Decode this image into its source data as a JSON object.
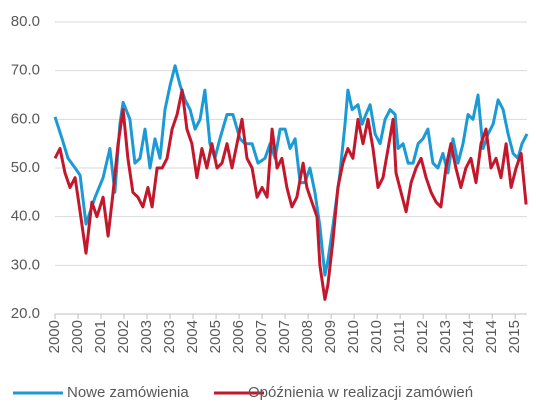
{
  "chart_data": {
    "type": "line",
    "xlim": [
      2000,
      2016
    ],
    "ylim": [
      20,
      80
    ],
    "yticks": [
      {
        "value": 20,
        "label": "20.0"
      },
      {
        "value": 30,
        "label": "30.0"
      },
      {
        "value": 40,
        "label": "40.0"
      },
      {
        "value": 50,
        "label": "50.0"
      },
      {
        "value": 60,
        "label": "60.0"
      },
      {
        "value": 70,
        "label": "70.0"
      },
      {
        "value": 80,
        "label": "80.0"
      }
    ],
    "xticks": [
      2000,
      {
        "value": 2000.78,
        "label": "2000"
      },
      {
        "value": 2001.56,
        "label": "2001"
      },
      {
        "value": 2002.34,
        "label": "2002"
      },
      {
        "value": 2003.12,
        "label": "2003"
      },
      {
        "value": 2003.9,
        "label": "2003"
      },
      {
        "value": 2004.68,
        "label": "2004"
      },
      {
        "value": 2005.46,
        "label": "2005"
      },
      {
        "value": 2006.24,
        "label": "2006"
      },
      {
        "value": 2007.02,
        "label": "2007"
      },
      {
        "value": 2007.8,
        "label": "2007"
      },
      {
        "value": 2008.58,
        "label": "2008"
      },
      {
        "value": 2009.36,
        "label": "2009"
      },
      {
        "value": 2010.14,
        "label": "2010"
      },
      {
        "value": 2010.92,
        "label": "2010"
      },
      {
        "value": 2011.7,
        "label": "2011"
      },
      {
        "value": 2012.48,
        "label": "2012"
      },
      {
        "value": 2013.26,
        "label": "2013"
      },
      {
        "value": 2014.04,
        "label": "2014"
      },
      {
        "value": 2014.82,
        "label": "2014"
      },
      {
        "value": 2015.6,
        "label": "2015"
      }
    ],
    "grid": true,
    "legend": "bottom",
    "series": [
      {
        "name": "Nowe zamówienia",
        "color": "#1b9ad6",
        "x": [
          2000,
          2000.24,
          2000.44,
          2000.68,
          2000.85,
          2001.05,
          2001.36,
          2001.63,
          2001.86,
          2002.03,
          2002.2,
          2002.31,
          2002.54,
          2002.71,
          2002.88,
          2003.05,
          2003.22,
          2003.39,
          2003.56,
          2003.73,
          2003.9,
          2004.07,
          2004.24,
          2004.41,
          2004.58,
          2004.75,
          2004.92,
          2005.08,
          2005.25,
          2005.42,
          2005.59,
          2005.83,
          2006.03,
          2006.27,
          2006.44,
          2006.68,
          2006.88,
          2007.12,
          2007.29,
          2007.46,
          2007.63,
          2007.8,
          2007.97,
          2008.14,
          2008.31,
          2008.47,
          2008.64,
          2008.81,
          2008.98,
          2009.15,
          2009.25,
          2009.42,
          2009.66,
          2009.83,
          2009.93,
          2010.07,
          2010.27,
          2010.41,
          2010.54,
          2010.68,
          2010.85,
          2011.02,
          2011.19,
          2011.36,
          2011.53,
          2011.63,
          2011.8,
          2011.97,
          2012.14,
          2012.31,
          2012.47,
          2012.64,
          2012.81,
          2012.98,
          2013.15,
          2013.32,
          2013.49,
          2013.66,
          2013.83,
          2014,
          2014.17,
          2014.34,
          2014.51,
          2014.68,
          2014.85,
          2015.02,
          2015.19,
          2015.36,
          2015.53,
          2015.69,
          2015.83,
          2016
        ],
        "values": [
          60.5,
          56,
          52,
          50,
          48.5,
          38.5,
          44,
          48,
          54,
          45,
          59,
          63.5,
          60,
          51,
          52,
          58,
          50,
          56,
          52,
          62,
          67,
          71,
          67,
          64,
          62,
          58,
          60,
          66,
          55,
          52,
          56,
          61,
          61,
          56,
          55,
          55,
          51,
          52,
          55,
          52,
          58,
          58,
          54,
          56,
          47,
          47,
          50,
          45,
          38,
          28,
          31,
          38,
          49,
          59,
          66,
          62,
          63,
          59,
          61,
          63,
          57,
          55,
          60,
          62,
          61,
          54,
          55,
          51,
          51,
          55,
          56,
          58,
          51,
          50,
          53,
          49,
          56,
          51,
          55,
          61,
          60,
          65,
          54,
          57,
          59,
          64,
          62,
          57,
          53,
          52,
          55,
          57
        ]
      },
      {
        "name": "Opóźnienia w realizacji zamówień",
        "color": "#c3172c",
        "x": [
          2000,
          2000.17,
          2000.34,
          2000.51,
          2000.68,
          2000.85,
          2001.05,
          2001.25,
          2001.42,
          2001.63,
          2001.8,
          2001.97,
          2002.14,
          2002.31,
          2002.47,
          2002.64,
          2002.81,
          2002.98,
          2003.15,
          2003.29,
          2003.46,
          2003.63,
          2003.8,
          2003.97,
          2004.14,
          2004.31,
          2004.47,
          2004.64,
          2004.81,
          2004.98,
          2005.15,
          2005.32,
          2005.49,
          2005.66,
          2005.83,
          2006,
          2006.17,
          2006.34,
          2006.51,
          2006.68,
          2006.85,
          2007.02,
          2007.19,
          2007.36,
          2007.53,
          2007.69,
          2007.86,
          2008.03,
          2008.2,
          2008.41,
          2008.54,
          2008.71,
          2008.88,
          2008.98,
          2009.15,
          2009.25,
          2009.42,
          2009.59,
          2009.76,
          2009.93,
          2010.1,
          2010.27,
          2010.44,
          2010.61,
          2010.78,
          2010.95,
          2011.12,
          2011.29,
          2011.46,
          2011.56,
          2011.73,
          2011.9,
          2012.07,
          2012.24,
          2012.41,
          2012.58,
          2012.75,
          2012.92,
          2013.08,
          2013.25,
          2013.42,
          2013.59,
          2013.76,
          2013.93,
          2014.1,
          2014.27,
          2014.44,
          2014.61,
          2014.78,
          2014.95,
          2015.12,
          2015.29,
          2015.46,
          2015.63,
          2015.8,
          2015.97
        ],
        "values": [
          52,
          54,
          49,
          46,
          48,
          41,
          32.5,
          43,
          40,
          44,
          36,
          45,
          55,
          62,
          52,
          45,
          44,
          42,
          46,
          42,
          50,
          50,
          52,
          58,
          61,
          66,
          58,
          55,
          48,
          54,
          50,
          55,
          50,
          51,
          55,
          50,
          55,
          60,
          52,
          50,
          44,
          46,
          44,
          58,
          50,
          52,
          46,
          42,
          44,
          51,
          46,
          43,
          40,
          30,
          23,
          26,
          35,
          46,
          51,
          54,
          52,
          60,
          55,
          60,
          54,
          46,
          48,
          54,
          60,
          49,
          45,
          41,
          47,
          50,
          52,
          48,
          45,
          43,
          42,
          50,
          55,
          50,
          46,
          50,
          52,
          47,
          55,
          58,
          50,
          52,
          48,
          55,
          46,
          50,
          53,
          42.5
        ]
      }
    ]
  }
}
